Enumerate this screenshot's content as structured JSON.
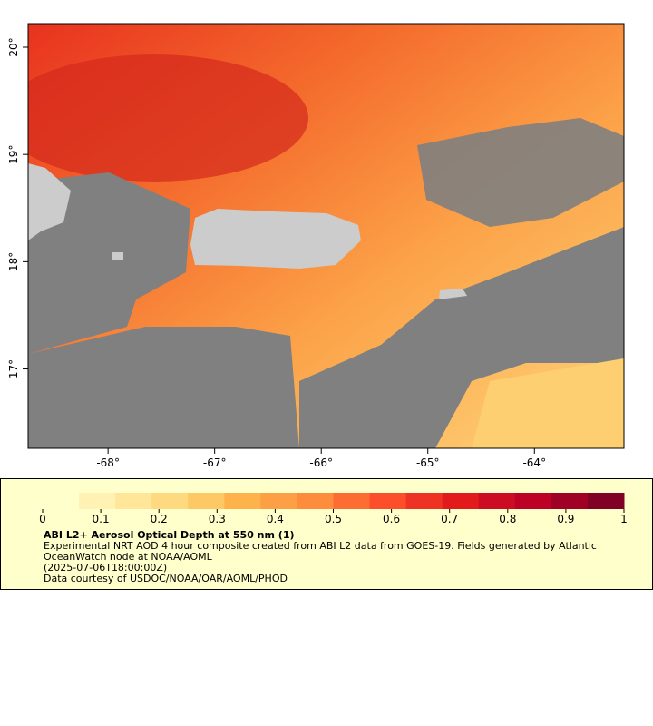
{
  "map": {
    "xlim": [
      -68.75,
      -63.16
    ],
    "ylim": [
      16.26,
      20.22
    ],
    "xticks": [
      {
        "value": -68,
        "label": "-68°"
      },
      {
        "value": -67,
        "label": "-67°"
      },
      {
        "value": -66,
        "label": "-66°"
      },
      {
        "value": -65,
        "label": "-65°"
      },
      {
        "value": -64,
        "label": "-64°"
      }
    ],
    "yticks": [
      {
        "value": 17,
        "label": "17°"
      },
      {
        "value": 18,
        "label": "18°"
      },
      {
        "value": 19,
        "label": "19°"
      },
      {
        "value": 20,
        "label": "20°"
      }
    ]
  },
  "colorbar": {
    "range": [
      0,
      1
    ],
    "ticks": [
      0,
      0.1,
      0.2,
      0.3,
      0.4,
      0.5,
      0.6,
      0.7,
      0.8,
      0.9,
      1
    ],
    "colors": [
      "#ffffcc",
      "#fff2b2",
      "#ffe699",
      "#fed97f",
      "#fec965",
      "#feb24c",
      "#fd9f44",
      "#fd8d3c",
      "#fc6c33",
      "#fc4e2a",
      "#ee3324",
      "#e31a1c",
      "#cc0c22",
      "#bd0026",
      "#a10026",
      "#800026"
    ]
  },
  "legend": {
    "title": "ABI L2+ Aerosol Optical Depth at 550 nm (1)",
    "lines": [
      "Experimental NRT AOD 4 hour composite created from ABI L2 data from GOES-19. Fields generated by Atlantic",
      "OceanWatch node at NOAA/AOML",
      "(2025-07-06T18:00:00Z)",
      "Data courtesy of USDOC/NOAA/OAR/AOML/PHOD"
    ]
  }
}
